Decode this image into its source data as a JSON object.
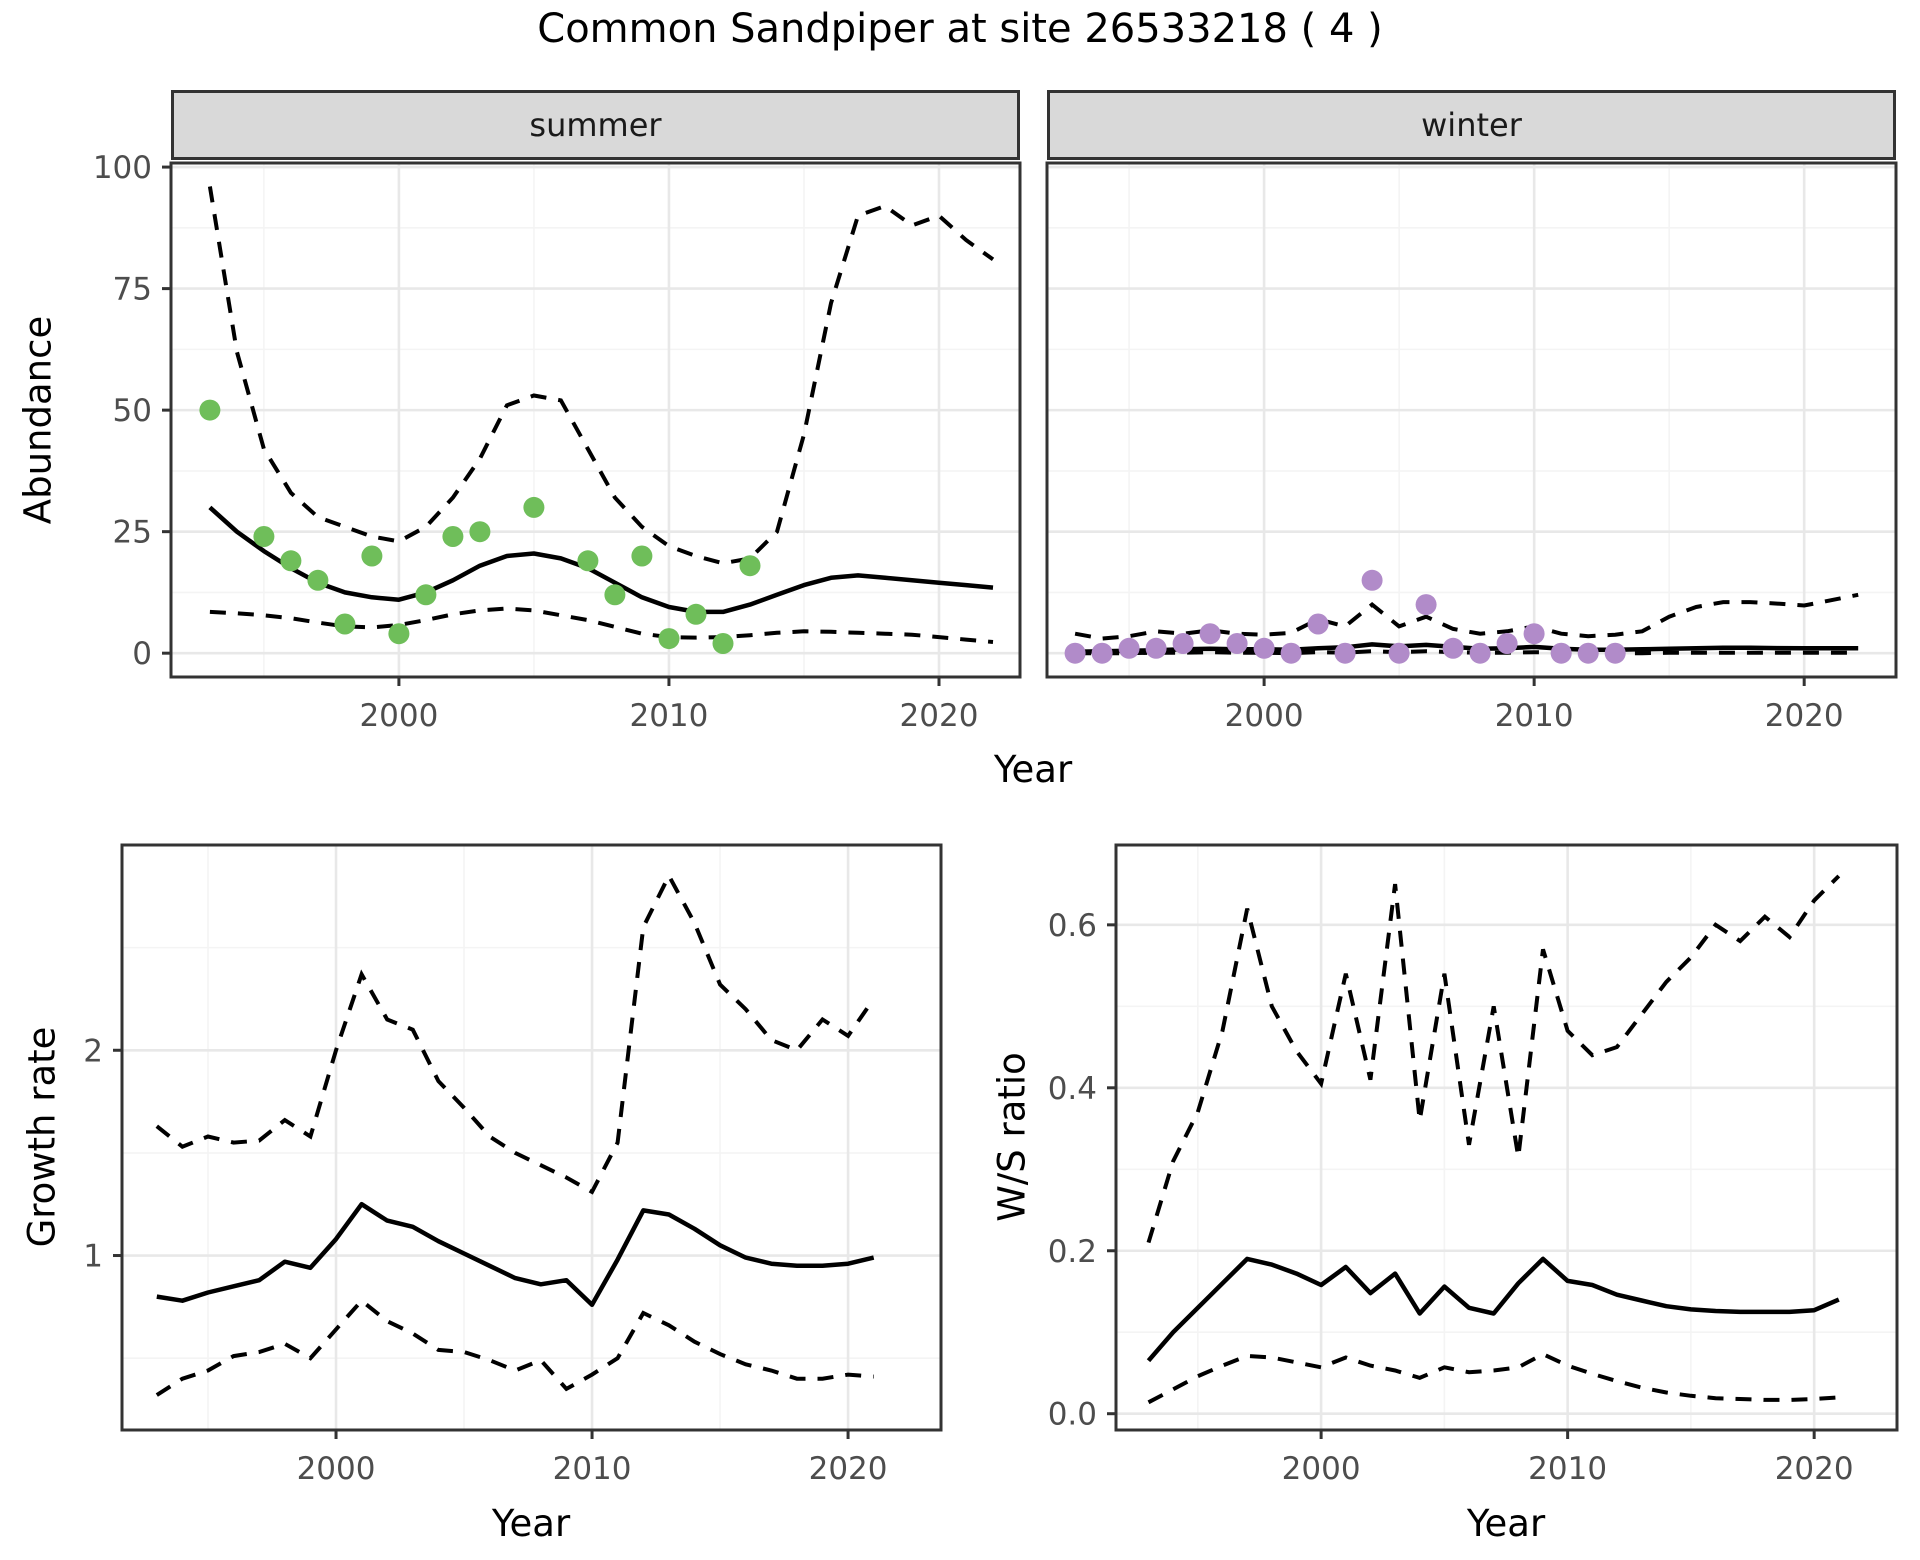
{
  "title": "Common Sandpiper at site 26533218 ( 4 )",
  "axes": {
    "abundance_label": "Abundance",
    "year_label": "Year",
    "growth_label": "Growth rate",
    "ws_label": "W/S ratio"
  },
  "facets": {
    "summer_label": "summer",
    "winter_label": "winter"
  },
  "colors": {
    "summer_point": "#6fbe5a",
    "winter_point": "#b18bc9",
    "line": "#000000",
    "strip_bg": "#d9d9d9",
    "panel_border": "#333333",
    "grid_major": "#e8e8e8",
    "grid_minor": "#f4f4f4",
    "tick_text": "#4d4d4d"
  },
  "chart_data": [
    {
      "id": "abundance_summer",
      "type": "scatter",
      "facet": "summer",
      "xlabel": "Year",
      "ylabel": "Abundance",
      "x_ticks": [
        2000,
        2010,
        2020
      ],
      "x_tick_labels": [
        "2000",
        "2010",
        "2020"
      ],
      "x_minor": [
        1995,
        2005,
        2015
      ],
      "y_ticks": [
        0,
        25,
        50,
        75,
        100
      ],
      "y_tick_labels": [
        "0",
        "25",
        "50",
        "75",
        "100"
      ],
      "y_minor": [
        12.5,
        37.5,
        62.5,
        87.5
      ],
      "ylim": [
        0,
        100
      ],
      "point_color": "#6fbe5a",
      "points_years": [
        1993,
        1995,
        1996,
        1997,
        1998,
        1999,
        2000,
        2001,
        2002,
        2003,
        2005,
        2007,
        2008,
        2009,
        2010,
        2011,
        2012,
        2013
      ],
      "points_values": [
        50,
        24,
        19,
        15,
        6,
        20,
        4,
        12,
        24,
        25,
        30,
        19,
        12,
        20,
        3,
        8,
        2,
        18
      ],
      "line_years": [
        1993,
        1994,
        1995,
        1996,
        1997,
        1998,
        1999,
        2000,
        2001,
        2002,
        2003,
        2004,
        2005,
        2006,
        2007,
        2008,
        2009,
        2010,
        2011,
        2012,
        2013,
        2014,
        2015,
        2016,
        2017,
        2018,
        2019,
        2020,
        2021,
        2022
      ],
      "fitted": [
        30,
        25,
        21,
        17.5,
        14.5,
        12.5,
        11.5,
        11,
        12.5,
        15,
        18,
        20,
        20.5,
        19.5,
        17.5,
        14.5,
        11.5,
        9.5,
        8.5,
        8.5,
        10,
        12,
        14,
        15.5,
        16,
        15.5,
        15,
        14.5,
        14,
        13.5
      ],
      "ci_upper": [
        96,
        62,
        42,
        33,
        28,
        26,
        24,
        23,
        26,
        32,
        40,
        51,
        53,
        52,
        42,
        32,
        26,
        22,
        20,
        18.5,
        19.5,
        25,
        45,
        72,
        90,
        92,
        88,
        90,
        85,
        81
      ],
      "ci_lower": [
        8.5,
        8.2,
        7.8,
        7.2,
        6.3,
        5.5,
        5.3,
        5.8,
        6.8,
        8,
        8.8,
        9.2,
        8.8,
        7.8,
        6.8,
        5.4,
        4,
        3.3,
        3.2,
        3.3,
        3.7,
        4.2,
        4.5,
        4.4,
        4.2,
        4,
        3.8,
        3.3,
        2.8,
        2.3
      ]
    },
    {
      "id": "abundance_winter",
      "type": "scatter",
      "facet": "winter",
      "xlabel": "Year",
      "ylabel": "Abundance",
      "x_ticks": [
        2000,
        2010,
        2020
      ],
      "x_tick_labels": [
        "2000",
        "2010",
        "2020"
      ],
      "x_minor": [
        1995,
        2005,
        2015
      ],
      "y_ticks": [
        0,
        25,
        50,
        75,
        100
      ],
      "y_tick_labels": [],
      "y_minor": [
        12.5,
        37.5,
        62.5,
        87.5
      ],
      "ylim": [
        0,
        100
      ],
      "point_color": "#b18bc9",
      "points_years": [
        1993,
        1994,
        1995,
        1996,
        1997,
        1998,
        1999,
        2000,
        2001,
        2002,
        2003,
        2004,
        2005,
        2006,
        2007,
        2008,
        2009,
        2010,
        2011,
        2012,
        2013
      ],
      "points_values": [
        0,
        0,
        1,
        1,
        2,
        4,
        2,
        1,
        0,
        6,
        0,
        15,
        0,
        10,
        1,
        0,
        2,
        4,
        0,
        0,
        0
      ],
      "line_years": [
        1993,
        1994,
        1995,
        1996,
        1997,
        1998,
        1999,
        2000,
        2001,
        2002,
        2003,
        2004,
        2005,
        2006,
        2007,
        2008,
        2009,
        2010,
        2011,
        2012,
        2013,
        2014,
        2015,
        2016,
        2017,
        2018,
        2019,
        2020,
        2021,
        2022
      ],
      "fitted": [
        0.3,
        0.4,
        0.5,
        0.6,
        0.8,
        0.9,
        0.8,
        0.8,
        0.7,
        1.0,
        1.2,
        1.8,
        1.4,
        1.7,
        1.3,
        0.9,
        1.0,
        1.3,
        0.9,
        0.7,
        0.7,
        0.8,
        0.9,
        1.0,
        1.1,
        1.1,
        1.05,
        1.0,
        1.0,
        1.0
      ],
      "ci_upper": [
        4,
        3,
        3.5,
        4.5,
        4,
        4.7,
        4,
        3.8,
        4.2,
        7,
        5.5,
        10,
        5.5,
        7.5,
        5,
        4,
        4.5,
        5.5,
        4,
        3.5,
        3.8,
        4.5,
        7.5,
        9.5,
        10.5,
        10.5,
        10.2,
        9.8,
        10.9,
        12
      ],
      "ci_lower": [
        0,
        0,
        0,
        0.1,
        0.1,
        0.2,
        0.1,
        0.1,
        0,
        0.2,
        0.1,
        0.4,
        0.2,
        0.4,
        0.2,
        0.1,
        0.1,
        0.2,
        0.1,
        0,
        0,
        0,
        0.1,
        0.1,
        0.1,
        0.1,
        0.1,
        0.1,
        0.1,
        0.1
      ]
    },
    {
      "id": "growth_rate",
      "type": "line",
      "xlabel": "Year",
      "ylabel": "Growth rate",
      "x_ticks": [
        2000,
        2010,
        2020
      ],
      "x_tick_labels": [
        "2000",
        "2010",
        "2020"
      ],
      "x_minor": [
        1995,
        2005,
        2015
      ],
      "y_ticks": [
        1,
        2
      ],
      "y_tick_labels": [
        "1",
        "2"
      ],
      "y_minor": [
        0.5,
        1.5,
        2.5
      ],
      "ylim": [
        0.15,
        3.0
      ],
      "points_years": [],
      "points_values": [],
      "line_years": [
        1993,
        1994,
        1995,
        1996,
        1997,
        1998,
        1999,
        2000,
        2001,
        2002,
        2003,
        2004,
        2005,
        2006,
        2007,
        2008,
        2009,
        2010,
        2011,
        2012,
        2013,
        2014,
        2015,
        2016,
        2017,
        2018,
        2019,
        2020,
        2021
      ],
      "fitted": [
        0.8,
        0.78,
        0.82,
        0.85,
        0.88,
        0.97,
        0.94,
        1.08,
        1.25,
        1.17,
        1.14,
        1.07,
        1.01,
        0.95,
        0.89,
        0.86,
        0.88,
        0.76,
        0.98,
        1.22,
        1.2,
        1.13,
        1.05,
        0.99,
        0.96,
        0.95,
        0.95,
        0.96,
        0.99
      ],
      "ci_upper": [
        1.63,
        1.53,
        1.58,
        1.55,
        1.56,
        1.66,
        1.58,
        2.0,
        2.37,
        2.15,
        2.1,
        1.85,
        1.72,
        1.58,
        1.5,
        1.44,
        1.38,
        1.31,
        1.55,
        2.6,
        2.85,
        2.62,
        2.32,
        2.2,
        2.05,
        2.0,
        2.15,
        2.07,
        2.25
      ],
      "ci_lower": [
        0.32,
        0.4,
        0.44,
        0.51,
        0.53,
        0.57,
        0.5,
        0.64,
        0.78,
        0.68,
        0.62,
        0.54,
        0.53,
        0.49,
        0.44,
        0.49,
        0.35,
        0.42,
        0.5,
        0.72,
        0.66,
        0.58,
        0.52,
        0.47,
        0.44,
        0.4,
        0.4,
        0.42,
        0.41
      ]
    },
    {
      "id": "ws_ratio",
      "type": "line",
      "xlabel": "Year",
      "ylabel": "W/S ratio",
      "x_ticks": [
        2000,
        2010,
        2020
      ],
      "x_tick_labels": [
        "2000",
        "2010",
        "2020"
      ],
      "x_minor": [
        1995,
        2005,
        2015
      ],
      "y_ticks": [
        0,
        0.2,
        0.4,
        0.6
      ],
      "y_tick_labels": [
        "0.0",
        "0.2",
        "0.4",
        "0.6"
      ],
      "y_minor": [
        0.1,
        0.3,
        0.5
      ],
      "ylim": [
        -0.02,
        0.7
      ],
      "points_years": [],
      "points_values": [],
      "line_years": [
        1993,
        1994,
        1995,
        1996,
        1997,
        1998,
        1999,
        2000,
        2001,
        2002,
        2003,
        2004,
        2005,
        2006,
        2007,
        2008,
        2009,
        2010,
        2011,
        2012,
        2013,
        2014,
        2015,
        2016,
        2017,
        2018,
        2019,
        2020,
        2021
      ],
      "fitted": [
        0.065,
        0.1,
        0.13,
        0.16,
        0.19,
        0.183,
        0.172,
        0.158,
        0.18,
        0.148,
        0.172,
        0.123,
        0.156,
        0.13,
        0.123,
        0.16,
        0.19,
        0.163,
        0.158,
        0.146,
        0.139,
        0.132,
        0.128,
        0.126,
        0.125,
        0.125,
        0.125,
        0.127,
        0.14
      ],
      "ci_upper": [
        0.21,
        0.31,
        0.37,
        0.47,
        0.62,
        0.5,
        0.445,
        0.405,
        0.54,
        0.41,
        0.65,
        0.36,
        0.54,
        0.33,
        0.5,
        0.315,
        0.57,
        0.47,
        0.44,
        0.45,
        0.49,
        0.53,
        0.56,
        0.6,
        0.58,
        0.61,
        0.585,
        0.63,
        0.66
      ],
      "ci_lower": [
        0.014,
        0.03,
        0.046,
        0.059,
        0.071,
        0.069,
        0.063,
        0.057,
        0.069,
        0.059,
        0.053,
        0.044,
        0.057,
        0.051,
        0.053,
        0.057,
        0.073,
        0.059,
        0.049,
        0.04,
        0.032,
        0.026,
        0.022,
        0.019,
        0.018,
        0.017,
        0.017,
        0.018,
        0.02
      ]
    }
  ]
}
